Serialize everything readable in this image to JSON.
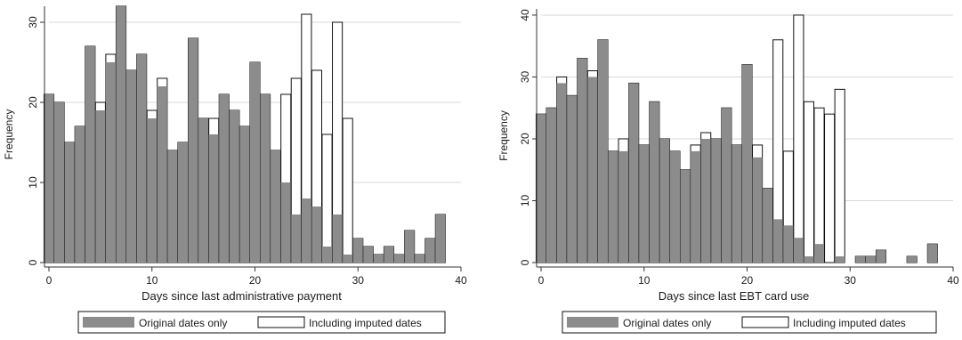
{
  "colors": {
    "original": "#8c8c8c",
    "imputed": "#ffffff",
    "edge": "#111111",
    "grid": "#d9d9d9",
    "axis": "#333333"
  },
  "legend": {
    "original_label": "Original dates only",
    "imputed_label": "Including imputed dates",
    "placement": "bottom"
  },
  "chart_data": [
    {
      "type": "bar",
      "xlabel": "Days since last administrative payment",
      "ylabel": "Frequency",
      "xlim": [
        0,
        40
      ],
      "ylim": [
        0,
        32
      ],
      "xticks": [
        0,
        10,
        20,
        30,
        40
      ],
      "yticks": [
        0,
        10,
        20,
        30
      ],
      "grid": true,
      "x": [
        0,
        1,
        2,
        3,
        4,
        5,
        6,
        7,
        8,
        9,
        10,
        11,
        12,
        13,
        14,
        15,
        16,
        17,
        18,
        19,
        20,
        21,
        22,
        23,
        24,
        25,
        26,
        27,
        28,
        29,
        30,
        31,
        32,
        33,
        34,
        35,
        36,
        37,
        38
      ],
      "series": [
        {
          "name": "Original dates only",
          "values": [
            21,
            20,
            15,
            17,
            27,
            19,
            25,
            32,
            24,
            26,
            18,
            22,
            14,
            15,
            28,
            18,
            16,
            21,
            19,
            17,
            25,
            21,
            14,
            10,
            6,
            8,
            7,
            2,
            6,
            1,
            3,
            2,
            1,
            2,
            1,
            4,
            1,
            3,
            6
          ]
        },
        {
          "name": "Including imputed dates",
          "values": [
            21,
            20,
            15,
            17,
            27,
            20,
            26,
            32,
            24,
            26,
            19,
            23,
            14,
            15,
            28,
            18,
            18,
            21,
            19,
            17,
            25,
            21,
            14,
            21,
            23,
            31,
            24,
            16,
            30,
            18,
            3,
            2,
            1,
            2,
            1,
            4,
            1,
            3,
            6
          ]
        }
      ]
    },
    {
      "type": "bar",
      "xlabel": "Days since last EBT card use",
      "ylabel": "Frequency",
      "xlim": [
        0,
        40
      ],
      "ylim": [
        0,
        41
      ],
      "xticks": [
        0,
        10,
        20,
        30,
        40
      ],
      "yticks": [
        0,
        10,
        20,
        30,
        40
      ],
      "grid": true,
      "x": [
        0,
        1,
        2,
        3,
        4,
        5,
        6,
        7,
        8,
        9,
        10,
        11,
        12,
        13,
        14,
        15,
        16,
        17,
        18,
        19,
        20,
        21,
        22,
        23,
        24,
        25,
        26,
        27,
        28,
        29,
        30,
        31,
        32,
        33,
        34,
        35,
        36,
        37,
        38
      ],
      "series": [
        {
          "name": "Original dates only",
          "values": [
            24,
            25,
            29,
            27,
            33,
            30,
            36,
            18,
            18,
            29,
            19,
            26,
            20,
            18,
            15,
            18,
            20,
            20,
            25,
            19,
            32,
            17,
            12,
            7,
            6,
            4,
            1,
            3,
            0,
            1,
            0,
            1,
            1,
            2,
            0,
            0,
            1,
            0,
            3
          ]
        },
        {
          "name": "Including imputed dates",
          "values": [
            24,
            25,
            30,
            27,
            33,
            31,
            36,
            18,
            20,
            29,
            19,
            26,
            20,
            18,
            15,
            19,
            21,
            20,
            25,
            19,
            32,
            19,
            12,
            36,
            18,
            40,
            26,
            25,
            24,
            28,
            0,
            1,
            1,
            2,
            0,
            0,
            1,
            0,
            3
          ]
        }
      ]
    }
  ]
}
